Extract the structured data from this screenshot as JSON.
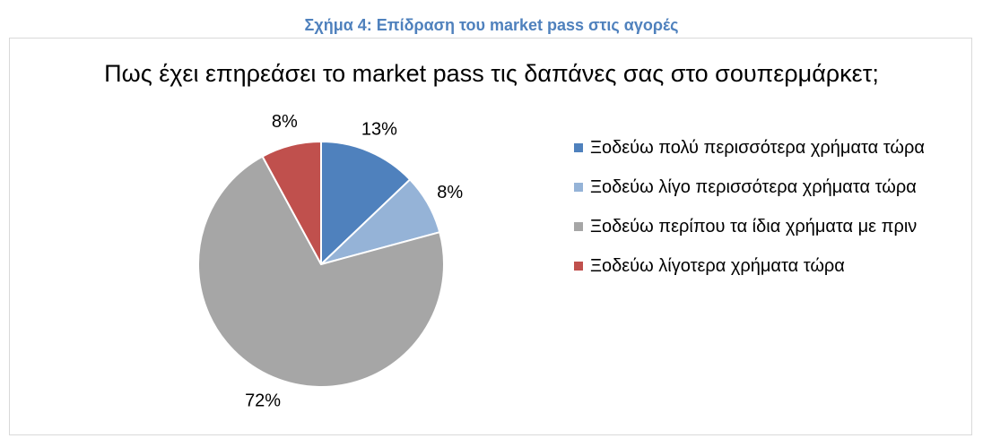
{
  "caption": "Σχήμα 4: Επίδραση του market pass στις αγορές",
  "chart_data": {
    "type": "pie",
    "title": "Πως έχει επηρεάσει το market pass τις δαπάνες σας στο σουπερμάρκετ;",
    "legend_position": "right",
    "slices": [
      {
        "label": "Ξοδεύω πολύ περισσότερα χρήματα τώρα",
        "value": 13,
        "display": "13%",
        "color": "#4f81bd"
      },
      {
        "label": "Ξοδεύω λίγο περισσότερα χρήματα τώρα",
        "value": 8,
        "display": "8%",
        "color": "#95b3d7"
      },
      {
        "label": "Ξοδεύω περίπου τα ίδια χρήματα με πριν",
        "value": 72,
        "display": "72%",
        "color": "#a6a6a6"
      },
      {
        "label": "Ξοδεύω λίγοτερα χρήματα τώρα",
        "value": 8,
        "display": "8%",
        "color": "#c0504d"
      }
    ]
  }
}
